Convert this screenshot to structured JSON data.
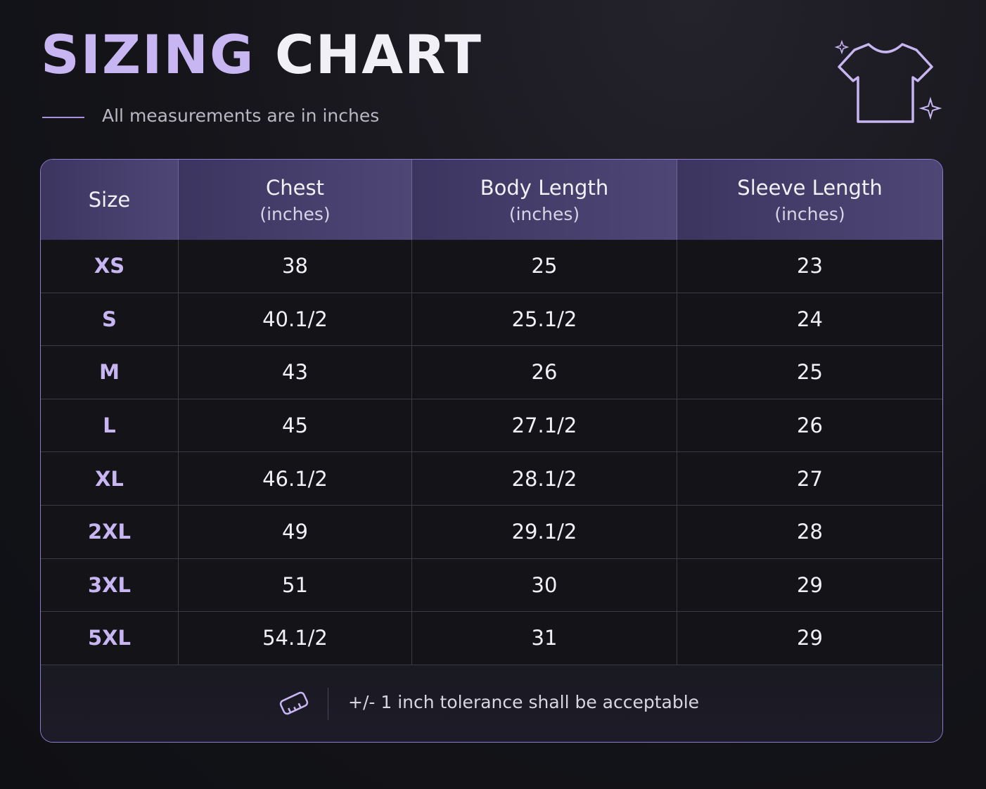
{
  "header": {
    "title_accent": "SIZING",
    "title_rest": "CHART",
    "subtitle": "All measurements are in inches"
  },
  "table": {
    "columns": [
      {
        "label": "Size"
      },
      {
        "label": "Chest",
        "unit": "(inches)"
      },
      {
        "label": "Body Length",
        "unit": "(inches)"
      },
      {
        "label": "Sleeve Length",
        "unit": "(inches)"
      }
    ],
    "rows": [
      [
        "XS",
        "38",
        "25",
        "23"
      ],
      [
        "S",
        "40.1/2",
        "25.1/2",
        "24"
      ],
      [
        "M",
        "43",
        "26",
        "25"
      ],
      [
        "L",
        "45",
        "27.1/2",
        "26"
      ],
      [
        "XL",
        "46.1/2",
        "28.1/2",
        "27"
      ],
      [
        "2XL",
        "49",
        "29.1/2",
        "28"
      ],
      [
        "3XL",
        "51",
        "30",
        "29"
      ],
      [
        "5XL",
        "54.1/2",
        "31",
        "29"
      ]
    ]
  },
  "footer": {
    "note": "+/- 1 inch tolerance shall be acceptable"
  }
}
